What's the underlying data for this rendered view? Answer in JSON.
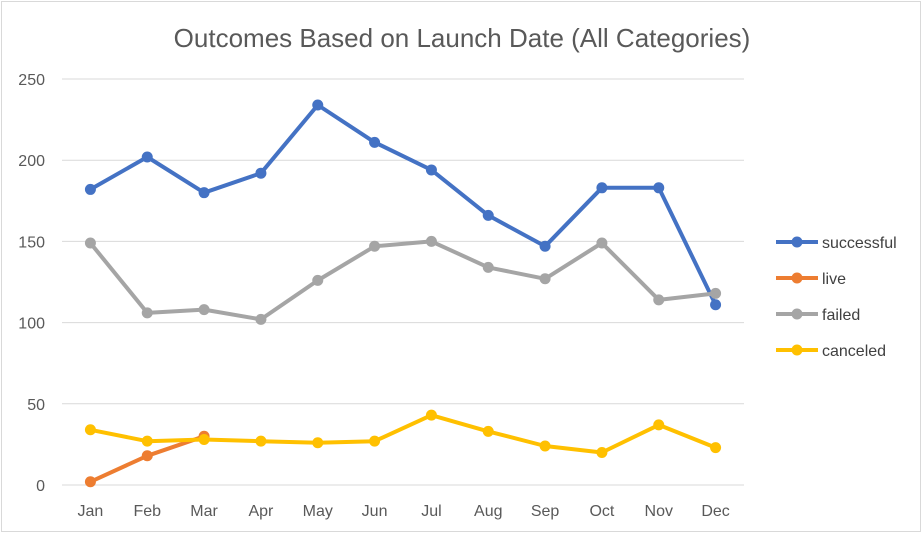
{
  "chart_data": {
    "type": "line",
    "title": "Outcomes Based on Launch Date (All Categories)",
    "xlabel": "",
    "ylabel": "",
    "categories": [
      "Jan",
      "Feb",
      "Mar",
      "Apr",
      "May",
      "Jun",
      "Jul",
      "Aug",
      "Sep",
      "Oct",
      "Nov",
      "Dec"
    ],
    "ylim": [
      0,
      250
    ],
    "yticks": [
      "0",
      "50",
      "100",
      "150",
      "200",
      "250"
    ],
    "grid": true,
    "legend_position": "right",
    "series": [
      {
        "name": "successful",
        "color": "#4472c4",
        "values": [
          182,
          202,
          180,
          192,
          234,
          211,
          194,
          166,
          147,
          183,
          183,
          111
        ]
      },
      {
        "name": "live",
        "color": "#ed7d31",
        "values": [
          2,
          18,
          30,
          null,
          null,
          null,
          null,
          null,
          null,
          null,
          null,
          null
        ]
      },
      {
        "name": "failed",
        "color": "#a5a5a5",
        "values": [
          149,
          106,
          108,
          102,
          126,
          147,
          150,
          134,
          127,
          149,
          114,
          118
        ]
      },
      {
        "name": "canceled",
        "color": "#ffc000",
        "values": [
          34,
          27,
          28,
          27,
          26,
          27,
          43,
          33,
          24,
          20,
          37,
          23
        ]
      }
    ]
  }
}
